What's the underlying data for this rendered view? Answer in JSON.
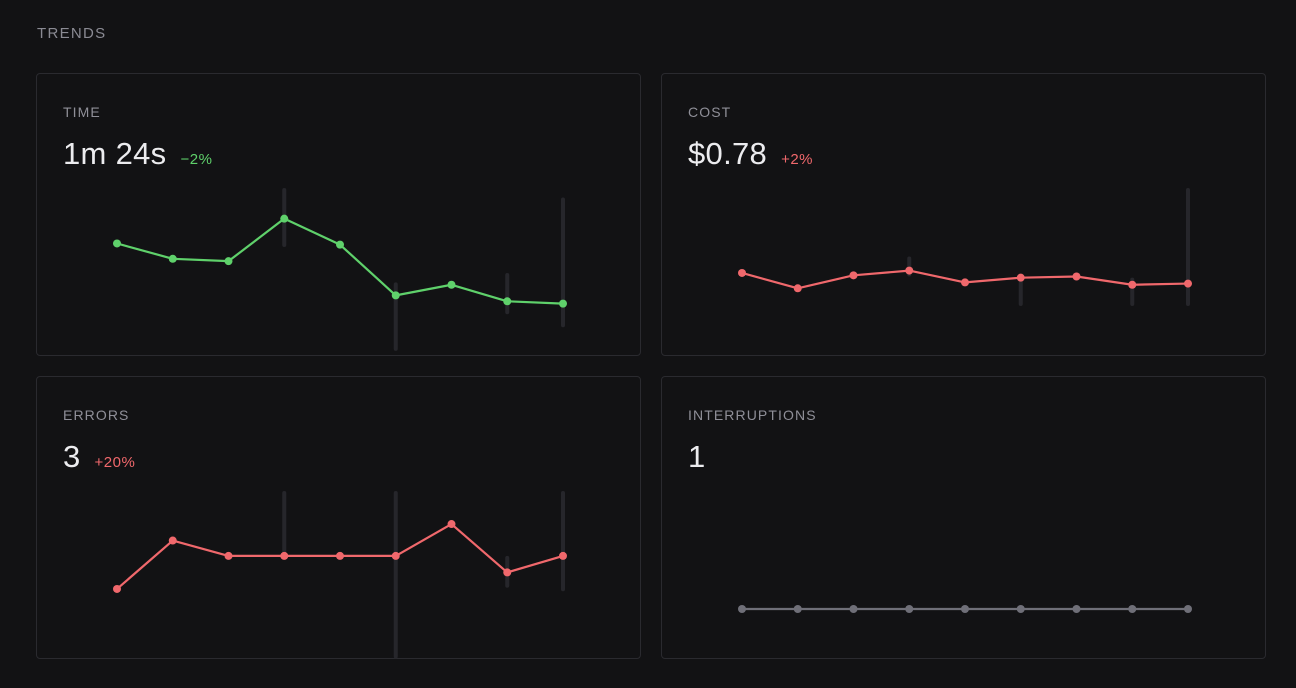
{
  "section": {
    "title": "TRENDS"
  },
  "colors": {
    "good": "#5fd16b",
    "bad": "#f0686c",
    "neutral": "#6f6f78",
    "range": "#26262b"
  },
  "cards": [
    {
      "id": "time",
      "label": "TIME",
      "value": "1m 24s",
      "delta": "−2%",
      "delta_status": "good",
      "series_status": "good",
      "chart_data": {
        "type": "line",
        "points": [
          0.53,
          0.4,
          0.38,
          0.74,
          0.52,
          0.09,
          0.18,
          0.04,
          0.02
        ],
        "ranges": [
          null,
          null,
          null,
          [
            0.5,
            1.0
          ],
          null,
          [
            -0.38,
            0.2
          ],
          null,
          [
            -0.07,
            0.28
          ],
          [
            -0.18,
            0.92
          ]
        ]
      }
    },
    {
      "id": "cost",
      "label": "COST",
      "value": "$0.78",
      "delta": "+2%",
      "delta_status": "bad",
      "series_status": "bad",
      "chart_data": {
        "type": "line",
        "points": [
          0.28,
          0.15,
          0.26,
          0.3,
          0.2,
          0.24,
          0.25,
          0.18,
          0.19
        ],
        "ranges": [
          null,
          null,
          null,
          [
            0.25,
            0.42
          ],
          null,
          [
            0.0,
            0.24
          ],
          null,
          [
            0.0,
            0.24
          ],
          [
            0.0,
            1.0
          ]
        ]
      }
    },
    {
      "id": "errors",
      "label": "ERRORS",
      "value": "3",
      "delta": "+20%",
      "delta_status": "bad",
      "series_status": "bad",
      "chart_data": {
        "type": "line",
        "points": [
          0.17,
          0.58,
          0.45,
          0.45,
          0.45,
          0.45,
          0.72,
          0.31,
          0.45
        ],
        "ranges": [
          null,
          null,
          null,
          [
            0.45,
            1.0
          ],
          null,
          [
            -0.42,
            1.0
          ],
          null,
          [
            0.18,
            0.45
          ],
          [
            0.15,
            1.0
          ]
        ]
      }
    },
    {
      "id": "interruptions",
      "label": "INTERRUPTIONS",
      "value": "1",
      "delta": "",
      "delta_status": "neutral",
      "series_status": "neutral",
      "chart_data": {
        "type": "line",
        "points": [
          0,
          0,
          0,
          0,
          0,
          0,
          0,
          0,
          0
        ],
        "ranges": [
          null,
          null,
          null,
          null,
          null,
          null,
          null,
          null,
          null
        ]
      }
    }
  ]
}
